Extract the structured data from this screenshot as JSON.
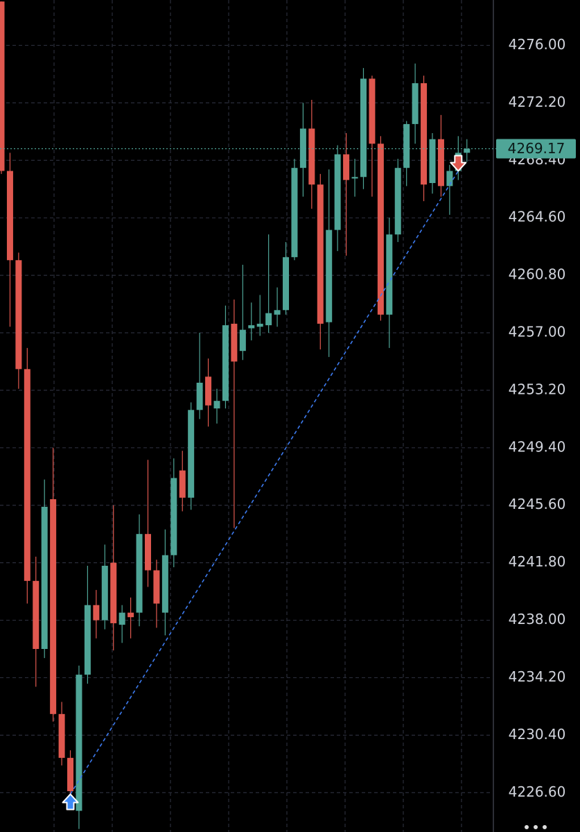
{
  "chart_data": {
    "type": "candlestick",
    "up_color": "#4fa597",
    "down_color": "#e0584f",
    "grid": true,
    "ylim": [
      4224.0,
      4279.0
    ],
    "yticks": [
      {
        "value": 4276.0,
        "label": "4276.00"
      },
      {
        "value": 4272.2,
        "label": "4272.20"
      },
      {
        "value": 4268.4,
        "label": "4268.40"
      },
      {
        "value": 4264.6,
        "label": "4264.60"
      },
      {
        "value": 4260.8,
        "label": "4260.80"
      },
      {
        "value": 4257.0,
        "label": "4257.00"
      },
      {
        "value": 4253.2,
        "label": "4253.20"
      },
      {
        "value": 4249.4,
        "label": "4249.40"
      },
      {
        "value": 4245.6,
        "label": "4245.60"
      },
      {
        "value": 4241.8,
        "label": "4241.80"
      },
      {
        "value": 4238.0,
        "label": "4238.00"
      },
      {
        "value": 4234.2,
        "label": "4234.20"
      },
      {
        "value": 4230.4,
        "label": "4230.40"
      },
      {
        "value": 4226.6,
        "label": "4226.60"
      }
    ],
    "current_price": {
      "value": 4269.17,
      "label": "4269.17"
    },
    "open": [
      4278.9,
      4267.7,
      4261.8,
      4254.6,
      4240.6,
      4236.1,
      4246.0,
      4231.8,
      4228.9,
      4225.4,
      4234.4,
      4239.0,
      4238.0,
      4241.8,
      4237.7,
      4238.5,
      4238.5,
      4243.7,
      4241.3,
      4238.5,
      4242.3,
      4247.9,
      4246.1,
      4251.9,
      4254.1,
      4252.0,
      4252.5,
      4257.6,
      4255.8,
      4257.3,
      4257.4,
      4257.5,
      4258.2,
      4258.5,
      4262.0,
      4267.9,
      4270.5,
      4266.8,
      4257.7,
      4263.8,
      4268.8,
      4267.2,
      4267.3,
      4273.8,
      4269.5,
      4258.2,
      4263.5,
      4267.9,
      4270.8,
      4273.5,
      4266.9,
      4269.8,
      4266.7,
      4267.7,
      4268.9
    ],
    "high": [
      4278.9,
      4268.9,
      4262.3,
      4256.0,
      4242.2,
      4247.3,
      4249.4,
      4232.6,
      4229.4,
      4235.0,
      4241.6,
      4240.0,
      4243.0,
      4245.6,
      4239.0,
      4239.5,
      4245.0,
      4248.6,
      4242.0,
      4244.0,
      4248.7,
      4249.2,
      4252.4,
      4257.0,
      4255.3,
      4253.3,
      4258.8,
      4259.2,
      4261.5,
      4259.0,
      4259.5,
      4263.5,
      4260.0,
      4263.0,
      4268.5,
      4272.2,
      4272.4,
      4267.5,
      4267.8,
      4269.4,
      4270.2,
      4268.5,
      4274.5,
      4274.0,
      4270.0,
      4264.6,
      4268.5,
      4271.0,
      4274.8,
      4274.0,
      4270.2,
      4271.4,
      4268.1,
      4270.0,
      4269.8
    ],
    "low": [
      4267.5,
      4257.4,
      4253.3,
      4239.1,
      4233.6,
      4235.5,
      4231.3,
      4228.4,
      4226.3,
      4224.2,
      4233.8,
      4236.8,
      4237.4,
      4236.0,
      4236.5,
      4236.8,
      4237.6,
      4240.2,
      4237.5,
      4237.0,
      4241.5,
      4245.2,
      4245.3,
      4251.3,
      4250.8,
      4251.0,
      4252.0,
      4244.1,
      4255.2,
      4256.5,
      4256.8,
      4257.0,
      4257.4,
      4258.2,
      4261.8,
      4266.0,
      4265.2,
      4255.9,
      4255.4,
      4262.4,
      4262.1,
      4266.0,
      4266.5,
      4266.0,
      4257.8,
      4256.0,
      4263.0,
      4266.7,
      4269.5,
      4265.7,
      4266.2,
      4266.0,
      4264.8,
      4267.1,
      4268.3
    ],
    "close": [
      4267.7,
      4261.8,
      4254.6,
      4240.6,
      4236.1,
      4245.5,
      4231.8,
      4228.9,
      4226.7,
      4234.4,
      4239.0,
      4238.0,
      4241.6,
      4237.8,
      4238.5,
      4238.2,
      4243.7,
      4241.3,
      4239.1,
      4242.3,
      4247.4,
      4246.1,
      4251.9,
      4253.7,
      4252.2,
      4252.5,
      4257.5,
      4255.1,
      4257.2,
      4257.5,
      4257.6,
      4258.3,
      4258.5,
      4262.0,
      4267.9,
      4270.5,
      4266.8,
      4257.6,
      4263.8,
      4268.8,
      4267.1,
      4267.3,
      4273.8,
      4269.5,
      4258.2,
      4263.5,
      4267.9,
      4270.8,
      4273.5,
      4266.8,
      4269.8,
      4266.7,
      4267.7,
      4268.9,
      4269.17
    ],
    "markers": [
      {
        "index": 8,
        "price": 4226.5,
        "direction": "up",
        "color": "#3d8af7"
      },
      {
        "index": 53,
        "price": 4267.7,
        "direction": "down",
        "color": "#e0584f"
      }
    ]
  }
}
